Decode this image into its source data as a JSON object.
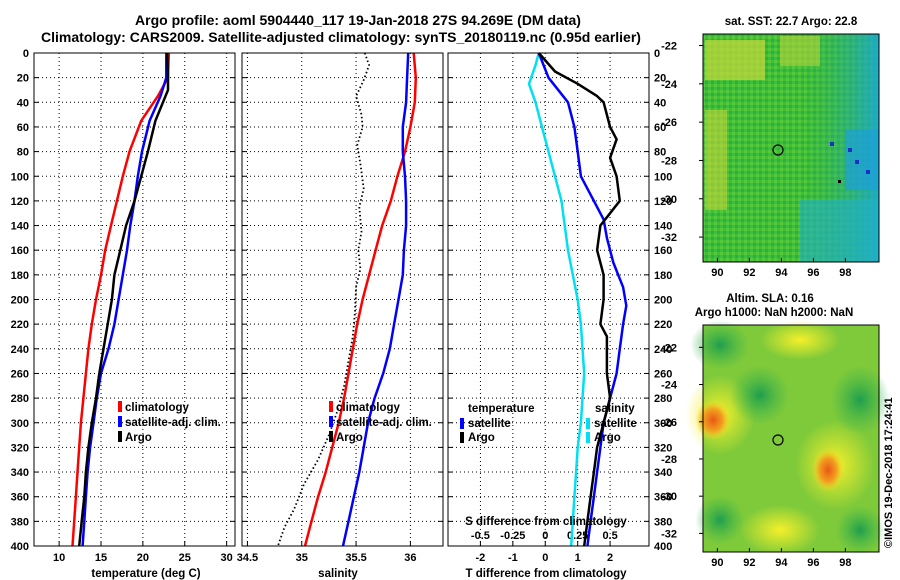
{
  "header": {
    "title1": "Argo profile: aoml 5904440_117 19-Jan-2018 27S 94.269E (DM data)",
    "title2": "Climatology: CARS2009. Satellite-adjusted climatology: synTS_20180119.nc (0.95d earlier)"
  },
  "colors": {
    "climatology": "#ff0000",
    "satellite": "#0000ff",
    "argo": "#000000",
    "cyan": "#00e0f0"
  },
  "depth_axis": {
    "ticks": [
      0,
      20,
      40,
      60,
      80,
      100,
      120,
      140,
      160,
      180,
      200,
      220,
      240,
      260,
      280,
      300,
      320,
      340,
      360,
      380,
      400
    ],
    "range": [
      0,
      400
    ]
  },
  "chart_data": [
    {
      "type": "line",
      "id": "temperature",
      "xlabel": "temperature (deg C)",
      "ylabel": "depth",
      "xlim": [
        7,
        31
      ],
      "ylim": [
        400,
        0
      ],
      "xticks": [
        {
          "v": 10,
          "label": "10"
        },
        {
          "v": 15,
          "label": "15"
        },
        {
          "v": 20,
          "label": "20"
        },
        {
          "v": 25,
          "label": "25"
        },
        {
          "v": 30,
          "label": "30"
        }
      ],
      "legend": [
        "climatology",
        "satellite-adj. clim.",
        "Argo"
      ],
      "series": [
        {
          "name": "climatology",
          "color": "#ff0000",
          "width": 2.5,
          "points": [
            [
              23.1,
              0
            ],
            [
              23.0,
              20
            ],
            [
              21.8,
              35
            ],
            [
              19.8,
              55
            ],
            [
              18.4,
              80
            ],
            [
              17.6,
              100
            ],
            [
              16.9,
              120
            ],
            [
              16.2,
              140
            ],
            [
              15.5,
              160
            ],
            [
              15.0,
              180
            ],
            [
              14.4,
              200
            ],
            [
              13.9,
              220
            ],
            [
              13.5,
              240
            ],
            [
              13.2,
              260
            ],
            [
              12.9,
              280
            ],
            [
              12.6,
              300
            ],
            [
              12.4,
              320
            ],
            [
              12.2,
              340
            ],
            [
              12.0,
              360
            ],
            [
              11.8,
              380
            ],
            [
              11.6,
              400
            ]
          ]
        },
        {
          "name": "satellite-adj. clim.",
          "color": "#0000ff",
          "width": 2.5,
          "points": [
            [
              22.8,
              0
            ],
            [
              22.8,
              20
            ],
            [
              22.1,
              35
            ],
            [
              20.8,
              55
            ],
            [
              19.9,
              80
            ],
            [
              19.4,
              100
            ],
            [
              19.0,
              120
            ],
            [
              18.5,
              140
            ],
            [
              18.1,
              160
            ],
            [
              17.6,
              180
            ],
            [
              17.1,
              200
            ],
            [
              16.6,
              220
            ],
            [
              15.9,
              240
            ],
            [
              15.0,
              260
            ],
            [
              14.5,
              280
            ],
            [
              14.1,
              300
            ],
            [
              13.7,
              320
            ],
            [
              13.4,
              340
            ],
            [
              13.2,
              360
            ],
            [
              13.0,
              380
            ],
            [
              12.8,
              400
            ]
          ]
        },
        {
          "name": "Argo",
          "color": "#000000",
          "width": 2.5,
          "points": [
            [
              22.9,
              0
            ],
            [
              23.0,
              20
            ],
            [
              23.0,
              30
            ],
            [
              21.5,
              55
            ],
            [
              20.6,
              80
            ],
            [
              19.8,
              100
            ],
            [
              19.0,
              120
            ],
            [
              18.0,
              140
            ],
            [
              17.3,
              160
            ],
            [
              16.6,
              180
            ],
            [
              16.3,
              200
            ],
            [
              15.8,
              220
            ],
            [
              15.3,
              240
            ],
            [
              14.8,
              260
            ],
            [
              14.4,
              280
            ],
            [
              13.9,
              300
            ],
            [
              13.5,
              320
            ],
            [
              13.2,
              340
            ],
            [
              13.0,
              360
            ],
            [
              12.7,
              380
            ],
            [
              12.4,
              400
            ]
          ]
        }
      ]
    },
    {
      "type": "line",
      "id": "salinity",
      "xlabel": "salinity",
      "ylabel": "depth",
      "xlim": [
        34.45,
        36.3
      ],
      "ylim": [
        400,
        0
      ],
      "xticks": [
        {
          "v": 34.5,
          "label": "34.5"
        },
        {
          "v": 35,
          "label": "35"
        },
        {
          "v": 35.5,
          "label": "35.5"
        },
        {
          "v": 36,
          "label": "36"
        }
      ],
      "legend": [
        "climatology",
        "satellite-adj. clim.",
        "Argo"
      ],
      "series": [
        {
          "name": "climatology",
          "color": "#ff0000",
          "width": 2.5,
          "points": [
            [
              36.03,
              0
            ],
            [
              36.05,
              20
            ],
            [
              36.04,
              40
            ],
            [
              36.0,
              60
            ],
            [
              35.95,
              80
            ],
            [
              35.88,
              100
            ],
            [
              35.82,
              120
            ],
            [
              35.74,
              140
            ],
            [
              35.68,
              160
            ],
            [
              35.62,
              180
            ],
            [
              35.56,
              200
            ],
            [
              35.51,
              220
            ],
            [
              35.47,
              240
            ],
            [
              35.43,
              260
            ],
            [
              35.39,
              280
            ],
            [
              35.34,
              300
            ],
            [
              35.28,
              320
            ],
            [
              35.22,
              340
            ],
            [
              35.15,
              360
            ],
            [
              35.09,
              380
            ],
            [
              35.03,
              400
            ]
          ]
        },
        {
          "name": "satellite-adj. clim.",
          "color": "#0000ff",
          "width": 2.5,
          "points": [
            [
              35.98,
              0
            ],
            [
              35.97,
              20
            ],
            [
              35.96,
              40
            ],
            [
              35.93,
              60
            ],
            [
              35.93,
              80
            ],
            [
              35.95,
              100
            ],
            [
              35.96,
              120
            ],
            [
              35.96,
              140
            ],
            [
              35.94,
              160
            ],
            [
              35.93,
              180
            ],
            [
              35.89,
              200
            ],
            [
              35.85,
              220
            ],
            [
              35.81,
              240
            ],
            [
              35.75,
              260
            ],
            [
              35.67,
              280
            ],
            [
              35.61,
              300
            ],
            [
              35.57,
              320
            ],
            [
              35.53,
              340
            ],
            [
              35.48,
              360
            ],
            [
              35.43,
              380
            ],
            [
              35.38,
              400
            ]
          ]
        },
        {
          "name": "Argo",
          "color": "#000000",
          "width": 1.8,
          "dashed": true,
          "points": [
            [
              35.58,
              0
            ],
            [
              35.62,
              10
            ],
            [
              35.57,
              22
            ],
            [
              35.5,
              35
            ],
            [
              35.55,
              50
            ],
            [
              35.56,
              60
            ],
            [
              35.51,
              75
            ],
            [
              35.54,
              90
            ],
            [
              35.57,
              110
            ],
            [
              35.53,
              125
            ],
            [
              35.55,
              145
            ],
            [
              35.52,
              160
            ],
            [
              35.54,
              175
            ],
            [
              35.5,
              190
            ],
            [
              35.49,
              210
            ],
            [
              35.47,
              230
            ],
            [
              35.43,
              250
            ],
            [
              35.39,
              270
            ],
            [
              35.33,
              290
            ],
            [
              35.25,
              310
            ],
            [
              35.15,
              330
            ],
            [
              35.02,
              350
            ],
            [
              34.93,
              370
            ],
            [
              34.84,
              385
            ],
            [
              34.78,
              400
            ]
          ]
        }
      ]
    },
    {
      "type": "line",
      "id": "difference",
      "xlabel": "T difference from climatology",
      "xlabel2": "S difference from climatology",
      "ylabel": "depth",
      "xlim": [
        -3,
        3.2
      ],
      "ylim": [
        400,
        0
      ],
      "xticks": [
        {
          "v": -2,
          "label": "-2"
        },
        {
          "v": -1,
          "label": "-1"
        },
        {
          "v": 0,
          "label": "0"
        },
        {
          "v": 1,
          "label": "1"
        },
        {
          "v": 2,
          "label": "2"
        }
      ],
      "xticks2": [
        {
          "v": -2,
          "label": "-0.5"
        },
        {
          "v": -1,
          "label": "-0.25"
        },
        {
          "v": 0,
          "label": "0"
        },
        {
          "v": 1,
          "label": "0.25"
        },
        {
          "v": 2,
          "label": "0.5"
        }
      ],
      "legend_left_title": "temperature",
      "legend_right_title": "salinity",
      "legend_left": [
        "satellite",
        "Argo"
      ],
      "legend_right": [
        "satellite",
        "Argo"
      ],
      "series": [
        {
          "name": "S satellite",
          "color": "#00e0f0",
          "width": 2.5,
          "points": [
            [
              -0.2,
              0
            ],
            [
              -0.3,
              10
            ],
            [
              -0.5,
              25
            ],
            [
              -0.3,
              40
            ],
            [
              -0.1,
              60
            ],
            [
              0.1,
              80
            ],
            [
              0.3,
              100
            ],
            [
              0.5,
              120
            ],
            [
              0.6,
              140
            ],
            [
              0.7,
              160
            ],
            [
              0.85,
              180
            ],
            [
              1.0,
              200
            ],
            [
              1.1,
              220
            ],
            [
              1.15,
              240
            ],
            [
              1.2,
              260
            ],
            [
              1.15,
              280
            ],
            [
              1.1,
              300
            ],
            [
              1.0,
              320
            ],
            [
              0.95,
              340
            ],
            [
              0.9,
              360
            ],
            [
              0.85,
              380
            ],
            [
              0.8,
              400
            ]
          ]
        },
        {
          "name": "T satellite",
          "color": "#0000ff",
          "width": 2.5,
          "points": [
            [
              -0.2,
              0
            ],
            [
              0.1,
              20
            ],
            [
              0.7,
              40
            ],
            [
              0.9,
              60
            ],
            [
              1.0,
              80
            ],
            [
              1.1,
              100
            ],
            [
              1.5,
              120
            ],
            [
              1.8,
              135
            ],
            [
              1.9,
              150
            ],
            [
              2.1,
              170
            ],
            [
              2.4,
              190
            ],
            [
              2.5,
              205
            ],
            [
              2.4,
              220
            ],
            [
              2.3,
              240
            ],
            [
              2.2,
              260
            ],
            [
              2.0,
              280
            ],
            [
              1.8,
              300
            ],
            [
              1.7,
              320
            ],
            [
              1.6,
              340
            ],
            [
              1.5,
              360
            ],
            [
              1.4,
              380
            ],
            [
              1.3,
              400
            ]
          ]
        },
        {
          "name": "T Argo",
          "color": "#000000",
          "width": 2.5,
          "points": [
            [
              -0.2,
              0
            ],
            [
              0.3,
              15
            ],
            [
              1.0,
              25
            ],
            [
              1.6,
              35
            ],
            [
              1.8,
              40
            ],
            [
              2.0,
              60
            ],
            [
              2.2,
              70
            ],
            [
              2.0,
              85
            ],
            [
              2.2,
              100
            ],
            [
              2.3,
              120
            ],
            [
              2.0,
              130
            ],
            [
              1.7,
              140
            ],
            [
              1.6,
              160
            ],
            [
              1.8,
              180
            ],
            [
              1.8,
              200
            ],
            [
              1.7,
              220
            ],
            [
              1.9,
              230
            ],
            [
              1.9,
              260
            ],
            [
              2.0,
              280
            ],
            [
              1.8,
              300
            ],
            [
              1.6,
              320
            ],
            [
              1.5,
              340
            ],
            [
              1.4,
              360
            ],
            [
              1.3,
              380
            ],
            [
              1.2,
              400
            ]
          ]
        }
      ]
    }
  ],
  "sst_map": {
    "title": "sat. SST: 22.7 Argo: 22.8",
    "lon_ticks": [
      "90",
      "92",
      "94",
      "96",
      "98"
    ],
    "lat_ticks": [
      "-22",
      "-24",
      "-26",
      "-28",
      "-30",
      "-32"
    ]
  },
  "sla_map": {
    "title1": "Altim. SLA: 0.16",
    "title2": "Argo h1000: NaN h2000: NaN",
    "lon_ticks": [
      "90",
      "92",
      "94",
      "96",
      "98"
    ],
    "lat_ticks": [
      "-22",
      "-24",
      "-26",
      "-28",
      "-30",
      "-32"
    ]
  },
  "credit": "©IMOS 19-Dec-2018 17:24:41"
}
